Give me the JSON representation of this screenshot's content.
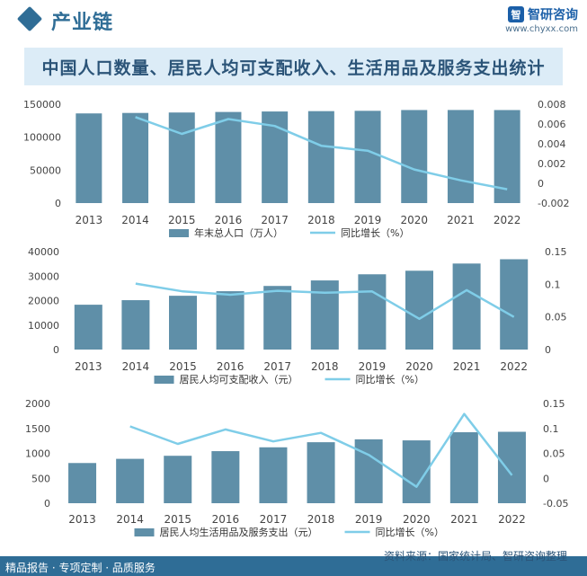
{
  "header": {
    "title": "产业链"
  },
  "logo": {
    "name": "智研咨询",
    "mark": "智",
    "url": "www.chyxx.com"
  },
  "figure_title": "中国人口数量、居民人均可支配收入、生活用品及服务支出统计",
  "colors": {
    "bar": "#5f8fa8",
    "line": "#7fcde8",
    "accent": "#2f6d96"
  },
  "footer": {
    "left": "精品报告 · 专项定制 · 品质服务",
    "source": "资料来源：国家统计局、智研咨询整理"
  },
  "chart_data": [
    {
      "type": "bar+line",
      "categories": [
        "2013",
        "2014",
        "2015",
        "2016",
        "2017",
        "2018",
        "2019",
        "2020",
        "2021",
        "2022"
      ],
      "series": [
        {
          "name": "年末总人口（万人）",
          "kind": "bar",
          "axis": "left",
          "values": [
            136072,
            136782,
            137462,
            138271,
            139008,
            139538,
            140005,
            141212,
            141260,
            141175
          ]
        },
        {
          "name": "同比增长（%）",
          "kind": "line",
          "axis": "right",
          "values": [
            null,
            0.0067,
            0.005,
            0.0065,
            0.0058,
            0.0038,
            0.0033,
            0.0014,
            0.0003,
            -0.0006
          ]
        }
      ],
      "left_axis": {
        "min": 0,
        "max": 150000,
        "ticks": [
          "0",
          "50000",
          "100000",
          "150000"
        ]
      },
      "right_axis": {
        "min": -0.002,
        "max": 0.008,
        "ticks": [
          "-0.002",
          "0",
          "0.002",
          "0.004",
          "0.006",
          "0.008"
        ]
      }
    },
    {
      "type": "bar+line",
      "categories": [
        "2013",
        "2014",
        "2015",
        "2016",
        "2017",
        "2018",
        "2019",
        "2020",
        "2021",
        "2022"
      ],
      "series": [
        {
          "name": "居民人均可支配收入（元）",
          "kind": "bar",
          "axis": "left",
          "values": [
            18311,
            20167,
            21966,
            23821,
            25974,
            28228,
            30733,
            32189,
            35128,
            36883
          ]
        },
        {
          "name": "同比增长（%）",
          "kind": "line",
          "axis": "right",
          "values": [
            null,
            0.101,
            0.089,
            0.084,
            0.09,
            0.087,
            0.089,
            0.047,
            0.091,
            0.05
          ]
        }
      ],
      "left_axis": {
        "min": 0,
        "max": 40000,
        "ticks": [
          "0",
          "10000",
          "20000",
          "30000",
          "40000"
        ]
      },
      "right_axis": {
        "min": 0,
        "max": 0.15,
        "ticks": [
          "0",
          "0.05",
          "0.1",
          "0.15"
        ]
      }
    },
    {
      "type": "bar+line",
      "categories": [
        "2013",
        "2014",
        "2015",
        "2016",
        "2017",
        "2018",
        "2019",
        "2020",
        "2021",
        "2022"
      ],
      "series": [
        {
          "name": "居民人均生活用品及服务支出（元）",
          "kind": "bar",
          "axis": "left",
          "values": [
            806,
            890,
            951,
            1044,
            1121,
            1223,
            1281,
            1260,
            1423,
            1432
          ]
        },
        {
          "name": "同比增长（%）",
          "kind": "line",
          "axis": "right",
          "values": [
            null,
            0.104,
            0.069,
            0.098,
            0.074,
            0.091,
            0.047,
            -0.017,
            0.129,
            0.006
          ]
        }
      ],
      "left_axis": {
        "min": 0,
        "max": 2000,
        "ticks": [
          "0",
          "500",
          "1000",
          "1500",
          "2000"
        ]
      },
      "right_axis": {
        "min": -0.05,
        "max": 0.15,
        "ticks": [
          "-0.05",
          "0",
          "0.05",
          "0.1",
          "0.15"
        ]
      }
    }
  ]
}
